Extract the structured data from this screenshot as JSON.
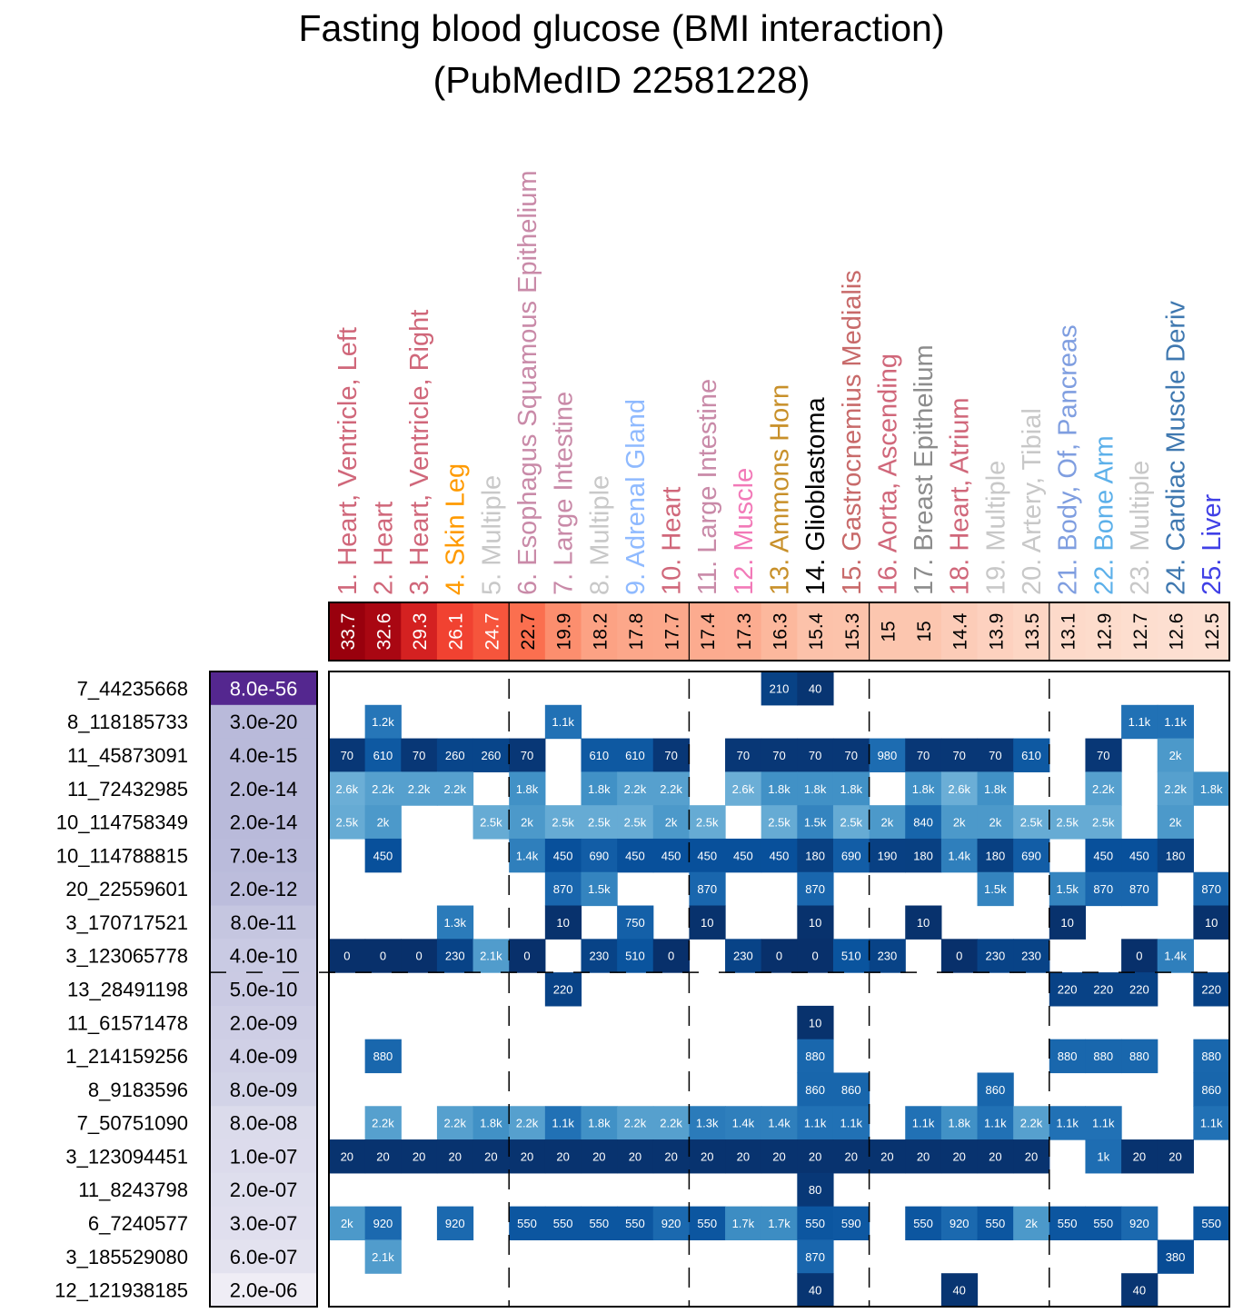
{
  "chart_data": {
    "type": "heatmap",
    "title": "Fasting blood glucose (BMI interaction)",
    "subtitle": "(PubMedID 22581228)",
    "columns": [
      {
        "label": "1. Heart, Ventricle, Left",
        "color": "#d0677a",
        "score": "33.7"
      },
      {
        "label": "2. Heart",
        "color": "#d0677a",
        "score": "32.6"
      },
      {
        "label": "3. Heart, Ventricle, Right",
        "color": "#d0677a",
        "score": "29.3"
      },
      {
        "label": "4. Skin Leg",
        "color": "#ff9a00",
        "score": "26.1"
      },
      {
        "label": "5. Multiple",
        "color": "#c8c8c8",
        "score": "24.7"
      },
      {
        "label": "6. Esophagus Squamous Epithelium",
        "color": "#c98aa8",
        "score": "22.7"
      },
      {
        "label": "7. Large Intestine",
        "color": "#c98aa8",
        "score": "19.9"
      },
      {
        "label": "8. Multiple",
        "color": "#c8c8c8",
        "score": "18.2"
      },
      {
        "label": "9. Adrenal Gland",
        "color": "#8fbaff",
        "score": "17.8"
      },
      {
        "label": "10. Heart",
        "color": "#d0677a",
        "score": "17.7"
      },
      {
        "label": "11. Large Intestine",
        "color": "#c98aa8",
        "score": "17.4"
      },
      {
        "label": "12. Muscle",
        "color": "#f27ab8",
        "score": "17.3"
      },
      {
        "label": "13. Ammons Horn",
        "color": "#c8902a",
        "score": "16.3"
      },
      {
        "label": "14. Glioblastoma",
        "color": "#000000",
        "score": "15.4"
      },
      {
        "label": "15. Gastrocnemius Medialis",
        "color": "#c86a6a",
        "score": "15.3"
      },
      {
        "label": "16. Aorta, Ascending",
        "color": "#d0677a",
        "score": "15"
      },
      {
        "label": "17. Breast Epithelium",
        "color": "#8c8c8c",
        "score": "15"
      },
      {
        "label": "18. Heart, Atrium",
        "color": "#d0677a",
        "score": "14.4"
      },
      {
        "label": "19. Multiple",
        "color": "#c8c8c8",
        "score": "13.9"
      },
      {
        "label": "20. Artery, Tibial",
        "color": "#c8c8c8",
        "score": "13.5"
      },
      {
        "label": "21. Body, Of, Pancreas",
        "color": "#7f9ee0",
        "score": "13.1"
      },
      {
        "label": "22. Bone Arm",
        "color": "#5cb0ea",
        "score": "12.9"
      },
      {
        "label": "23. Multiple",
        "color": "#c8c8c8",
        "score": "12.7"
      },
      {
        "label": "24. Cardiac Muscle Deriv",
        "color": "#3f78b0",
        "score": "12.6"
      },
      {
        "label": "25. Liver",
        "color": "#4040e6",
        "score": "12.5"
      }
    ],
    "rows": [
      {
        "snp": "7_44235668",
        "pvalue": "8.0e-56",
        "cells": [
          "",
          "",
          "",
          "",
          "",
          "",
          "",
          "",
          "",
          "",
          "",
          "",
          "210",
          "40",
          "",
          "",
          "",
          "",
          "",
          "",
          "",
          "",
          "",
          "",
          ""
        ]
      },
      {
        "snp": "8_118185733",
        "pvalue": "3.0e-20",
        "cells": [
          "",
          "1.2k",
          "",
          "",
          "",
          "",
          "1.1k",
          "",
          "",
          "",
          "",
          "",
          "",
          "",
          "",
          "",
          "",
          "",
          "",
          "",
          "",
          "",
          "1.1k",
          "1.1k",
          ""
        ]
      },
      {
        "snp": "11_45873091",
        "pvalue": "4.0e-15",
        "cells": [
          "70",
          "610",
          "70",
          "260",
          "260",
          "70",
          "",
          "610",
          "610",
          "70",
          "",
          "70",
          "70",
          "70",
          "70",
          "980",
          "70",
          "70",
          "70",
          "610",
          "",
          "70",
          "",
          "2k",
          ""
        ]
      },
      {
        "snp": "11_72432985",
        "pvalue": "2.0e-14",
        "cells": [
          "2.6k",
          "2.2k",
          "2.2k",
          "2.2k",
          "",
          "1.8k",
          "",
          "1.8k",
          "2.2k",
          "2.2k",
          "",
          "2.6k",
          "1.8k",
          "1.8k",
          "1.8k",
          "",
          "1.8k",
          "2.6k",
          "1.8k",
          "",
          "",
          "2.2k",
          "",
          "2.2k",
          "1.8k"
        ]
      },
      {
        "snp": "10_114758349",
        "pvalue": "2.0e-14",
        "cells": [
          "2.5k",
          "2k",
          "",
          "",
          "2.5k",
          "2k",
          "2.5k",
          "2.5k",
          "2.5k",
          "2k",
          "2.5k",
          "",
          "2.5k",
          "1.5k",
          "2.5k",
          "2k",
          "840",
          "2k",
          "2k",
          "2.5k",
          "2.5k",
          "2.5k",
          "",
          "2k",
          ""
        ]
      },
      {
        "snp": "10_114788815",
        "pvalue": "7.0e-13",
        "cells": [
          "",
          "450",
          "",
          "",
          "",
          "1.4k",
          "450",
          "690",
          "450",
          "450",
          "450",
          "450",
          "450",
          "180",
          "690",
          "190",
          "180",
          "1.4k",
          "180",
          "690",
          "",
          "450",
          "450",
          "180",
          ""
        ]
      },
      {
        "snp": "20_22559601",
        "pvalue": "2.0e-12",
        "cells": [
          "",
          "",
          "",
          "",
          "",
          "",
          "870",
          "1.5k",
          "",
          "",
          "870",
          "",
          "",
          "870",
          "",
          "",
          "",
          "",
          "1.5k",
          "",
          "1.5k",
          "870",
          "870",
          "",
          "870"
        ]
      },
      {
        "snp": "3_170717521",
        "pvalue": "8.0e-11",
        "cells": [
          "",
          "",
          "",
          "1.3k",
          "",
          "",
          "10",
          "",
          "750",
          "",
          "10",
          "",
          "",
          "10",
          "",
          "",
          "10",
          "",
          "",
          "",
          "10",
          "",
          "",
          "",
          "10"
        ]
      },
      {
        "snp": "3_123065778",
        "pvalue": "4.0e-10",
        "cells": [
          "0",
          "0",
          "0",
          "230",
          "2.1k",
          "0",
          "",
          "230",
          "510",
          "0",
          "",
          "230",
          "0",
          "0",
          "510",
          "230",
          "",
          "0",
          "230",
          "230",
          "",
          "",
          "0",
          "1.4k",
          ""
        ]
      },
      {
        "snp": "13_28491198",
        "pvalue": "5.0e-10",
        "cells": [
          "",
          "",
          "",
          "",
          "",
          "",
          "220",
          "",
          "",
          "",
          "",
          "",
          "",
          "",
          "",
          "",
          "",
          "",
          "",
          "",
          "220",
          "220",
          "220",
          "",
          "220"
        ]
      },
      {
        "snp": "11_61571478",
        "pvalue": "2.0e-09",
        "cells": [
          "",
          "",
          "",
          "",
          "",
          "",
          "",
          "",
          "",
          "",
          "",
          "",
          "",
          "10",
          "",
          "",
          "",
          "",
          "",
          "",
          "",
          "",
          "",
          "",
          ""
        ]
      },
      {
        "snp": "1_214159256",
        "pvalue": "4.0e-09",
        "cells": [
          "",
          "880",
          "",
          "",
          "",
          "",
          "",
          "",
          "",
          "",
          "",
          "",
          "",
          "880",
          "",
          "",
          "",
          "",
          "",
          "",
          "880",
          "880",
          "880",
          "",
          "880"
        ]
      },
      {
        "snp": "8_9183596",
        "pvalue": "8.0e-09",
        "cells": [
          "",
          "",
          "",
          "",
          "",
          "",
          "",
          "",
          "",
          "",
          "",
          "",
          "",
          "860",
          "860",
          "",
          "",
          "",
          "860",
          "",
          "",
          "",
          "",
          "",
          "860"
        ]
      },
      {
        "snp": "7_50751090",
        "pvalue": "8.0e-08",
        "cells": [
          "",
          "2.2k",
          "",
          "2.2k",
          "1.8k",
          "2.2k",
          "1.1k",
          "1.8k",
          "2.2k",
          "2.2k",
          "1.3k",
          "1.4k",
          "1.4k",
          "1.1k",
          "1.1k",
          "",
          "1.1k",
          "1.8k",
          "1.1k",
          "2.2k",
          "1.1k",
          "1.1k",
          "",
          "",
          "1.1k"
        ]
      },
      {
        "snp": "3_123094451",
        "pvalue": "1.0e-07",
        "cells": [
          "20",
          "20",
          "20",
          "20",
          "20",
          "20",
          "20",
          "20",
          "20",
          "20",
          "20",
          "20",
          "20",
          "20",
          "20",
          "20",
          "20",
          "20",
          "20",
          "20",
          "",
          "1k",
          "20",
          "20",
          ""
        ]
      },
      {
        "snp": "11_8243798",
        "pvalue": "2.0e-07",
        "cells": [
          "",
          "",
          "",
          "",
          "",
          "",
          "",
          "",
          "",
          "",
          "",
          "",
          "",
          "80",
          "",
          "",
          "",
          "",
          "",
          "",
          "",
          "",
          "",
          "",
          ""
        ]
      },
      {
        "snp": "6_7240577",
        "pvalue": "3.0e-07",
        "cells": [
          "2k",
          "920",
          "",
          "920",
          "",
          "550",
          "550",
          "550",
          "550",
          "920",
          "550",
          "1.7k",
          "1.7k",
          "550",
          "590",
          "",
          "550",
          "920",
          "550",
          "2k",
          "550",
          "550",
          "920",
          "",
          "550"
        ]
      },
      {
        "snp": "3_185529080",
        "pvalue": "6.0e-07",
        "cells": [
          "",
          "2.1k",
          "",
          "",
          "",
          "",
          "",
          "",
          "",
          "",
          "",
          "",
          "",
          "870",
          "",
          "",
          "",
          "",
          "",
          "",
          "",
          "",
          "",
          "380",
          ""
        ]
      },
      {
        "snp": "12_121938185",
        "pvalue": "2.0e-06",
        "cells": [
          "",
          "",
          "",
          "",
          "",
          "",
          "",
          "",
          "",
          "",
          "",
          "",
          "",
          "40",
          "",
          "",
          "",
          "40",
          "",
          "",
          "",
          "",
          "40",
          "",
          ""
        ]
      }
    ],
    "column_groups_every": 5,
    "row_threshold_after": 9,
    "score_color_range": [
      "#fde0d2",
      "#99000d"
    ],
    "pvalue_color_range": [
      "#efedf5",
      "#54278f"
    ],
    "cell_color_scale": "distance (0 = dark blue, 2.6k = light blue)"
  }
}
